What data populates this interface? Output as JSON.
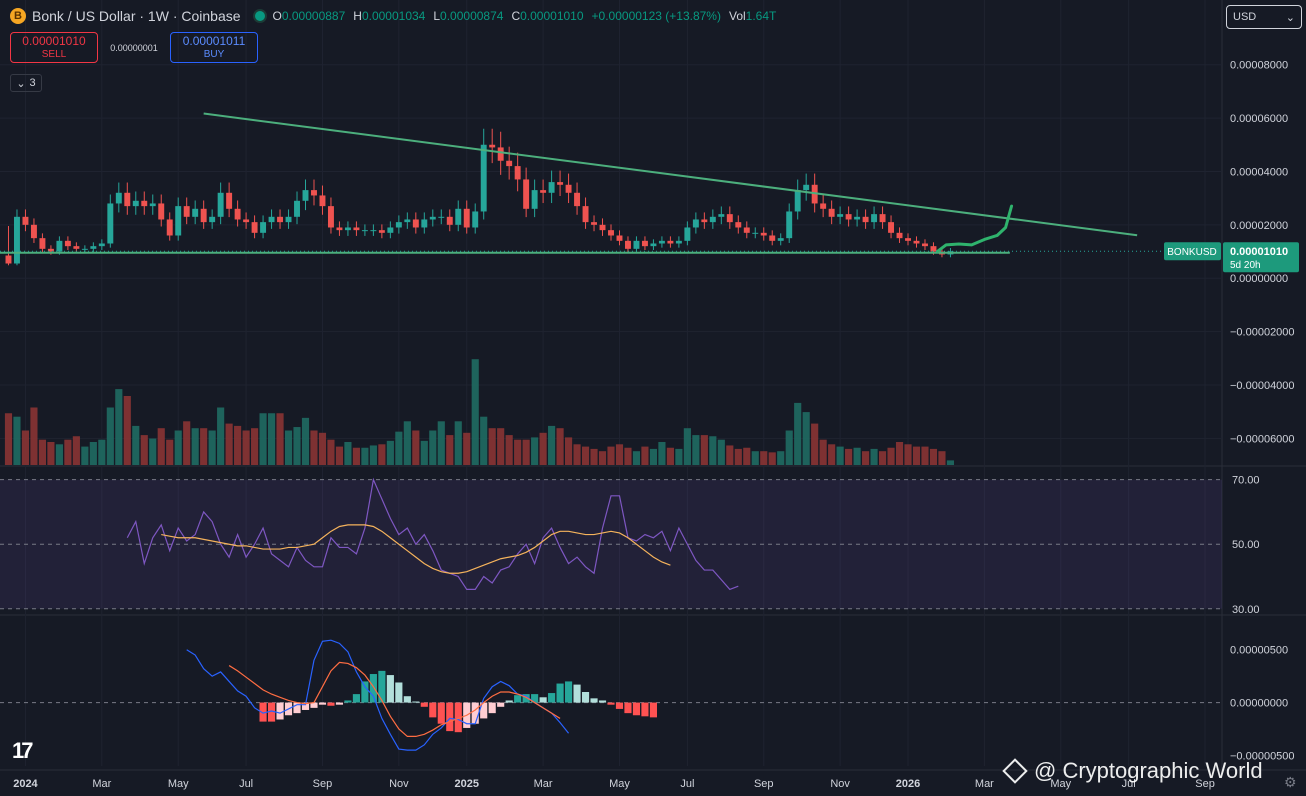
{
  "header": {
    "coin_glyph": "B",
    "title": "Bonk / US Dollar · 1W · Coinbase",
    "ohlc": [
      {
        "k": "O",
        "v": "0.00000887"
      },
      {
        "k": "H",
        "v": "0.00001034"
      },
      {
        "k": "L",
        "v": "0.00000874"
      },
      {
        "k": "C",
        "v": "0.00001010"
      }
    ],
    "change": "+0.00000123 (+13.87%)",
    "vol_label": "Vol",
    "vol_value": "1.64T"
  },
  "trade": {
    "sell_price": "0.00001010",
    "sell_label": "SELL",
    "spread": "0.00000001",
    "buy_price": "0.00001011",
    "buy_label": "BUY"
  },
  "collapse": {
    "icon": "chevron-down-icon",
    "count": "3"
  },
  "currency": {
    "value": "USD",
    "icon": "chevron-down-icon"
  },
  "tv_logo": "17",
  "watermark": "@ Cryptographic World",
  "colors": {
    "up": "#26a69a",
    "down": "#ef5350",
    "trend": "#4caf7d",
    "rsi": "#7e57c2",
    "rsi_ma": "#f5b35c",
    "macd": "#2962ff",
    "signal": "#ff6d42",
    "bg": "#161a25"
  },
  "chart_data": [
    {
      "type": "candlestick",
      "title": "Bonk / US Dollar · 1W · Coinbase",
      "price_label": {
        "symbol": "BONKUSD",
        "price": "0.00001010",
        "countdown": "5d 20h"
      },
      "y_ticks": [
        "0.00008000",
        "0.00006000",
        "0.00004000",
        "0.00002000",
        "0.00000000",
        "−0.00002000",
        "−0.00004000",
        "−0.00006000"
      ],
      "y_tick_values": [
        8e-05,
        6e-05,
        4e-05,
        2e-05,
        0,
        -2e-05,
        -4e-05,
        -6e-05
      ],
      "ylim": [
        -7e-05,
        9e-05
      ],
      "x_ticks": [
        "2024",
        "Mar",
        "May",
        "Jul",
        "Sep",
        "Nov",
        "2025",
        "Mar",
        "May",
        "Jul",
        "Sep",
        "Nov",
        "2026",
        "Mar",
        "May",
        "Jul",
        "Sep"
      ],
      "x_tick_weeks": [
        2,
        11,
        20,
        28,
        37,
        46,
        54,
        63,
        72,
        80,
        89,
        98,
        106,
        115,
        124,
        132,
        141
      ],
      "x_tick_bold": [
        true,
        false,
        false,
        false,
        false,
        false,
        true,
        false,
        false,
        false,
        false,
        false,
        true,
        false,
        false,
        false,
        false
      ],
      "week_range": [
        -1,
        143
      ],
      "first_candle_week": 0,
      "candles_close": [
        5.5e-06,
        2.3e-05,
        2e-05,
        1.5e-05,
        1.1e-05,
        1e-05,
        1.4e-05,
        1.2e-05,
        1.1e-05,
        1.1e-05,
        1.2e-05,
        1.3e-05,
        2.8e-05,
        3.2e-05,
        2.7e-05,
        2.9e-05,
        2.7e-05,
        2.8e-05,
        2.2e-05,
        1.6e-05,
        2.7e-05,
        2.3e-05,
        2.6e-05,
        2.1e-05,
        2.3e-05,
        3.2e-05,
        2.6e-05,
        2.2e-05,
        2.1e-05,
        1.7e-05,
        2.1e-05,
        2.3e-05,
        2.1e-05,
        2.3e-05,
        2.9e-05,
        3.3e-05,
        3.1e-05,
        2.7e-05,
        1.9e-05,
        1.8e-05,
        1.9e-05,
        1.8e-05,
        1.8e-05,
        1.8e-05,
        1.7e-05,
        1.9e-05,
        2.1e-05,
        2.2e-05,
        1.9e-05,
        2.2e-05,
        2.3e-05,
        2.3e-05,
        2e-05,
        2.6e-05,
        1.9e-05,
        2.5e-05,
        5e-05,
        4.9e-05,
        4.4e-05,
        4.2e-05,
        3.7e-05,
        2.6e-05,
        3.3e-05,
        3.2e-05,
        3.6e-05,
        3.5e-05,
        3.2e-05,
        2.7e-05,
        2.1e-05,
        2e-05,
        1.8e-05,
        1.6e-05,
        1.4e-05,
        1.1e-05,
        1.4e-05,
        1.2e-05,
        1.3e-05,
        1.4e-05,
        1.3e-05,
        1.4e-05,
        1.9e-05,
        2.2e-05,
        2.1e-05,
        2.3e-05,
        2.4e-05,
        2.1e-05,
        1.9e-05,
        1.7e-05,
        1.7e-05,
        1.6e-05,
        1.4e-05,
        1.5e-05,
        2.5e-05,
        3.3e-05,
        3.5e-05,
        2.8e-05,
        2.6e-05,
        2.3e-05,
        2.4e-05,
        2.2e-05,
        2.3e-05,
        2.1e-05,
        2.4e-05,
        2.1e-05,
        1.7e-05,
        1.5e-05,
        1.4e-05,
        1.3e-05,
        1.2e-05,
        1e-05,
        8.9e-06,
        1.01e-05
      ],
      "trendline": {
        "from": {
          "week": 23,
          "value": 6.17e-05
        },
        "to": {
          "week": 133,
          "value": 1.61e-05
        }
      },
      "support": {
        "from": {
          "week": -1,
          "value": 9.55e-06
        },
        "to": {
          "week": 118,
          "value": 9.55e-06
        }
      },
      "projection": [
        {
          "week": 109.5,
          "value": 1.01e-05
        },
        {
          "week": 110.5,
          "value": 1.25e-05
        },
        {
          "week": 112,
          "value": 1.28e-05
        },
        {
          "week": 113.5,
          "value": 1.25e-05
        },
        {
          "week": 115,
          "value": 1.45e-05
        },
        {
          "week": 116.5,
          "value": 1.6e-05
        },
        {
          "week": 117.5,
          "value": 1.9e-05
        },
        {
          "week": 118.2,
          "value": 2.7e-05
        }
      ],
      "volume_scale_max": 1.0,
      "volume_relative": [
        0.45,
        0.42,
        0.3,
        0.5,
        0.22,
        0.2,
        0.18,
        0.22,
        0.25,
        0.16,
        0.2,
        0.22,
        0.5,
        0.66,
        0.6,
        0.34,
        0.26,
        0.23,
        0.32,
        0.22,
        0.3,
        0.38,
        0.32,
        0.32,
        0.3,
        0.5,
        0.36,
        0.34,
        0.3,
        0.32,
        0.45,
        0.45,
        0.45,
        0.3,
        0.33,
        0.41,
        0.3,
        0.28,
        0.22,
        0.16,
        0.2,
        0.15,
        0.15,
        0.17,
        0.18,
        0.21,
        0.29,
        0.38,
        0.3,
        0.21,
        0.3,
        0.38,
        0.26,
        0.38,
        0.28,
        0.92,
        0.42,
        0.32,
        0.32,
        0.26,
        0.22,
        0.22,
        0.24,
        0.28,
        0.34,
        0.32,
        0.24,
        0.18,
        0.16,
        0.14,
        0.12,
        0.16,
        0.18,
        0.15,
        0.12,
        0.16,
        0.14,
        0.2,
        0.15,
        0.14,
        0.32,
        0.26,
        0.26,
        0.25,
        0.22,
        0.17,
        0.14,
        0.15,
        0.12,
        0.12,
        0.11,
        0.12,
        0.3,
        0.54,
        0.46,
        0.36,
        0.22,
        0.18,
        0.16,
        0.14,
        0.15,
        0.12,
        0.14,
        0.12,
        0.15,
        0.2,
        0.18,
        0.16,
        0.16,
        0.14,
        0.12,
        0.04
      ]
    },
    {
      "type": "line",
      "title": "RSI",
      "y_ticks": [
        "70.00",
        "50.00",
        "30.00"
      ],
      "y_tick_values": [
        70,
        50,
        30
      ],
      "ylim": [
        29,
        73
      ],
      "band": [
        30,
        70
      ],
      "rsi_start_week": 14,
      "rsi": [
        52,
        57,
        44,
        52,
        56,
        48,
        55,
        51,
        53,
        60,
        57,
        50,
        46,
        53,
        46,
        50,
        55,
        47,
        45,
        43,
        49,
        45,
        43,
        43,
        52,
        49,
        49,
        47,
        55,
        70,
        64,
        58,
        53,
        55,
        50,
        53,
        48,
        42,
        41,
        40,
        36,
        36,
        40,
        38,
        42,
        43,
        47,
        50,
        44,
        52,
        55,
        49,
        44,
        46,
        43,
        41,
        55,
        65,
        65,
        52,
        51,
        53,
        52,
        54,
        48,
        55,
        50,
        45,
        42,
        42,
        39,
        36,
        37
      ],
      "rsi_ma_start_week": 18,
      "rsi_ma": [
        53,
        52.5,
        52,
        52,
        52,
        51.5,
        51,
        50.5,
        50,
        49.5,
        49.5,
        49,
        48.5,
        48.5,
        48.5,
        49,
        49,
        49.5,
        50,
        52,
        54,
        55.5,
        56,
        56,
        56,
        55.5,
        54,
        52,
        50,
        48,
        46,
        44,
        42.5,
        41.5,
        41,
        41,
        41.5,
        42.5,
        43.5,
        44.5,
        45.5,
        46,
        46.5,
        47.5,
        49,
        51,
        53,
        54,
        54,
        53.5,
        53,
        53,
        53.5,
        54,
        53.5,
        52,
        50,
        48,
        46,
        44.5,
        43.5
      ]
    },
    {
      "type": "macd",
      "title": "MACD",
      "y_ticks": [
        "0.00000500",
        "0.00000000",
        "−0.00000500"
      ],
      "y_tick_values": [
        5e-06,
        0,
        -5e-06
      ],
      "ylim": [
        -6e-06,
        8e-06
      ],
      "macd_start_week": 21,
      "macd": [
        5e-06,
        4.5e-06,
        3.2e-06,
        2.5e-06,
        2.9e-06,
        2e-06,
        1.1e-06,
        6e-07,
        -5e-07,
        -1e-06,
        -8e-07,
        -1e-06,
        -6e-07,
        -2e-07,
        -2e-07,
        4e-06,
        5.8e-06,
        5.9e-06,
        5.6e-06,
        4.8e-06,
        2.9e-06,
        1.5e-06,
        6e-07,
        -1.5e-06,
        -3e-06,
        -4.4e-06,
        -4.5e-06,
        -4.5e-06,
        -4e-06,
        -3e-06,
        -2.4e-06,
        -1.5e-06,
        -1.6e-06,
        -2e-06,
        -2e-06,
        4e-07,
        1.5e-06,
        2e-06,
        1.6e-06,
        8e-07,
        6e-07,
        0,
        -5e-07,
        -1e-06,
        -1.9e-06,
        -2.9e-06
      ],
      "signal_start_week": 26,
      "signal": [
        3.5e-06,
        3e-06,
        2.4e-06,
        1.8e-06,
        1.2e-06,
        8e-07,
        5e-07,
        2e-07,
        0,
        -1e-07,
        0,
        1.5e-06,
        3e-06,
        3.8e-06,
        3.7e-06,
        3.3e-06,
        2.6e-06,
        1.5e-06,
        2e-07,
        -1.3e-06,
        -2.5e-06,
        -3.2e-06,
        -3.2e-06,
        -3e-06,
        -2.6e-06,
        -2.1e-06,
        -1.8e-06,
        -1.5e-06,
        -1.2e-06,
        -7e-07,
        0,
        6e-07,
        1e-06,
        1e-06,
        8e-07,
        5e-07,
        0,
        -5e-07,
        -1e-06,
        -1.5e-06
      ],
      "hist_start_week": 30,
      "histogram": [
        -1.8e-06,
        -1.8e-06,
        -1.6e-06,
        -1.2e-06,
        -1e-06,
        -7e-07,
        -5e-07,
        -2e-07,
        -3e-07,
        -2e-07,
        2e-07,
        8e-07,
        2e-06,
        2.7e-06,
        3e-06,
        2.6e-06,
        1.9e-06,
        6e-07,
        1e-07,
        -4e-07,
        -1.4e-06,
        -2e-06,
        -2.7e-06,
        -2.8e-06,
        -2.4e-06,
        -2e-06,
        -1.5e-06,
        -1e-06,
        -4e-07,
        2e-07,
        7e-07,
        8e-07,
        8e-07,
        5e-07,
        9e-07,
        1.8e-06,
        2e-06,
        1.7e-06,
        1e-06,
        4e-07,
        2e-07,
        -2e-07,
        -6e-07,
        -1e-06,
        -1.2e-06,
        -1.3e-06,
        -1.4e-06
      ]
    }
  ]
}
